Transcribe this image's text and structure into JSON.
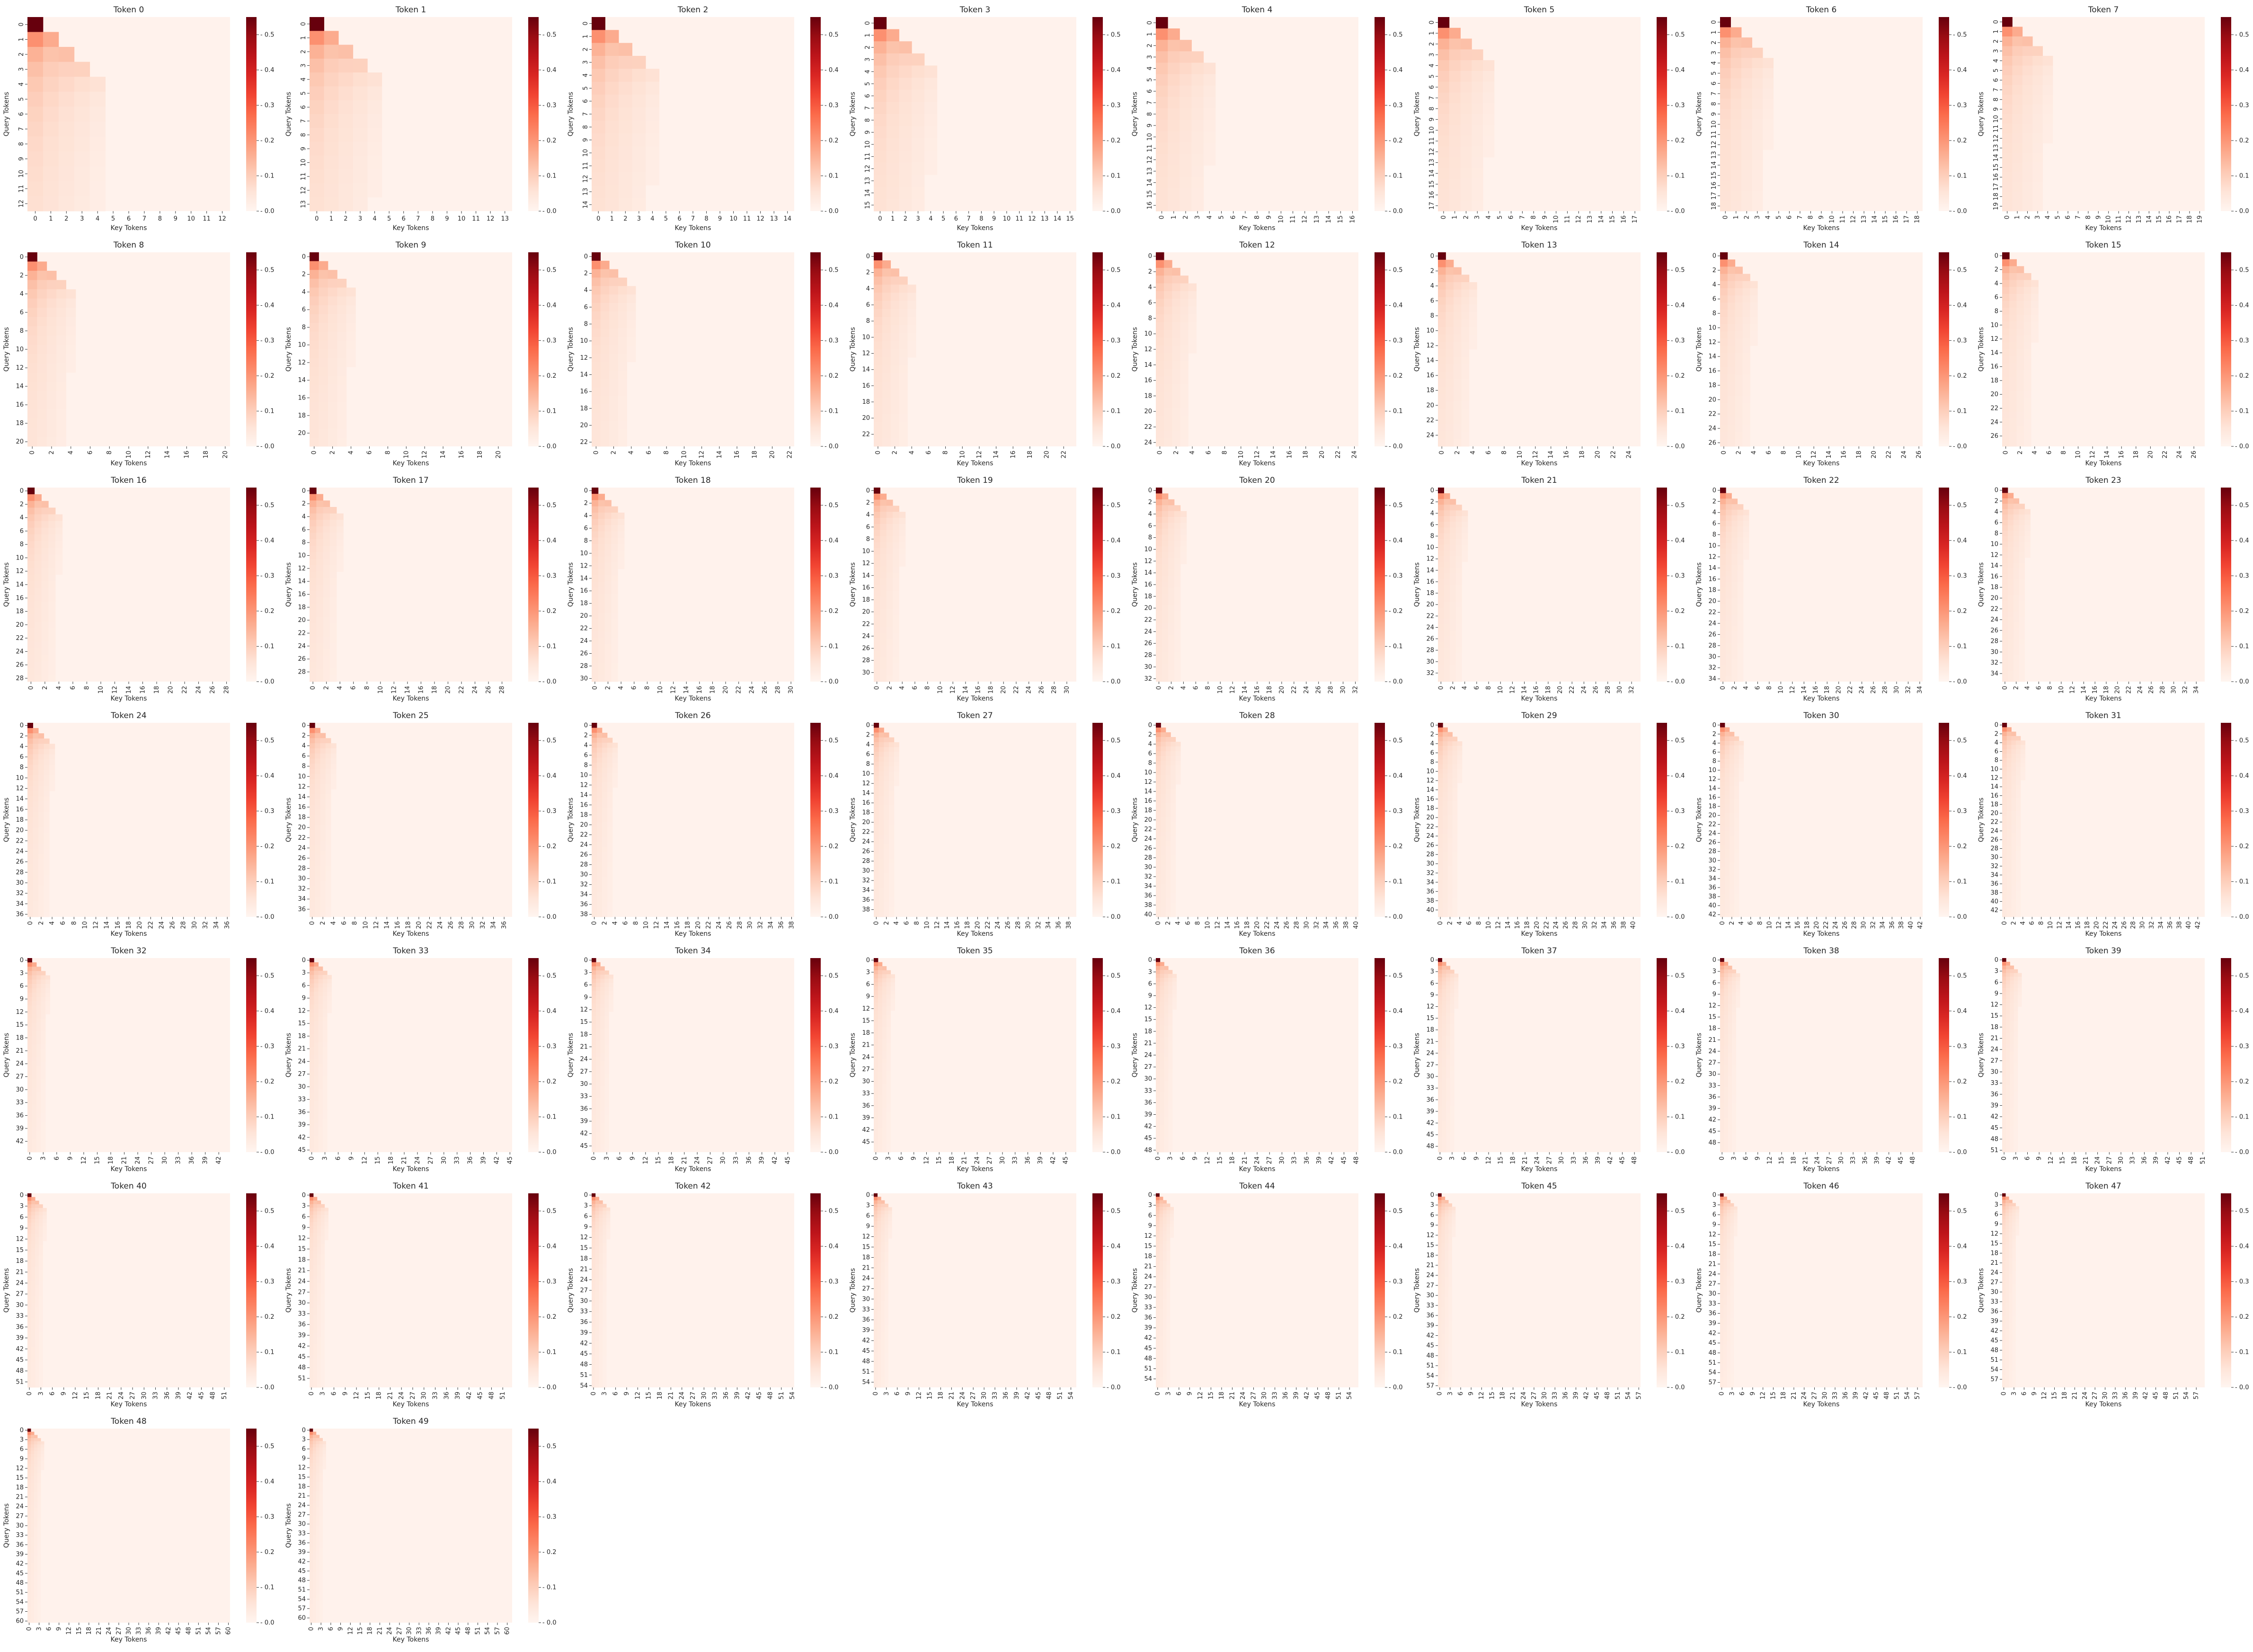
{
  "figure": {
    "colormap": "Reds",
    "color_low": "#fff5f0",
    "color_high": "#67000d"
  },
  "chart_data": {
    "type": "heatmap",
    "xlabel": "Key Tokens",
    "ylabel": "Query Tokens",
    "panels": [
      {
        "title": "Token 0",
        "size": 13,
        "vmax": 0.55,
        "cbar_ticks": [
          0.0,
          0.1,
          0.2,
          0.3,
          0.4,
          0.5
        ]
      },
      {
        "title": "Token 1",
        "size": 14,
        "vmax": 0.55,
        "cbar_ticks": [
          0.0,
          0.1,
          0.2,
          0.3,
          0.4,
          0.5
        ]
      },
      {
        "title": "Token 2",
        "size": 15,
        "vmax": 0.55,
        "cbar_ticks": [
          0.0,
          0.1,
          0.2,
          0.3,
          0.4,
          0.5
        ]
      },
      {
        "title": "Token 3",
        "size": 16,
        "vmax": 0.55,
        "cbar_ticks": [
          0.0,
          0.1,
          0.2,
          0.3,
          0.4,
          0.5
        ]
      },
      {
        "title": "Token 4",
        "size": 17,
        "vmax": 0.55,
        "cbar_ticks": [
          0.0,
          0.1,
          0.2,
          0.3,
          0.4,
          0.5
        ]
      },
      {
        "title": "Token 5",
        "size": 18,
        "vmax": 0.55,
        "cbar_ticks": [
          0.0,
          0.1,
          0.2,
          0.3,
          0.4,
          0.5
        ]
      },
      {
        "title": "Token 6",
        "size": 19,
        "vmax": 0.55,
        "cbar_ticks": [
          0.0,
          0.1,
          0.2,
          0.3,
          0.4,
          0.5
        ]
      },
      {
        "title": "Token 7",
        "size": 20,
        "vmax": 0.55,
        "cbar_ticks": [
          0.0,
          0.1,
          0.2,
          0.3,
          0.4,
          0.5
        ]
      },
      {
        "title": "Token 8",
        "size": 21,
        "vmax": 0.55,
        "cbar_ticks": [
          0.0,
          0.1,
          0.2,
          0.3,
          0.4,
          0.5
        ]
      },
      {
        "title": "Token 9",
        "size": 22,
        "vmax": 0.55,
        "cbar_ticks": [
          0.0,
          0.1,
          0.2,
          0.3,
          0.4,
          0.5
        ]
      },
      {
        "title": "Token 10",
        "size": 23,
        "vmax": 0.55,
        "cbar_ticks": [
          0.0,
          0.1,
          0.2,
          0.3,
          0.4,
          0.5
        ]
      },
      {
        "title": "Token 11",
        "size": 24,
        "vmax": 0.55,
        "cbar_ticks": [
          0.0,
          0.1,
          0.2,
          0.3,
          0.4,
          0.5
        ]
      },
      {
        "title": "Token 12",
        "size": 25,
        "vmax": 0.55,
        "cbar_ticks": [
          0.0,
          0.1,
          0.2,
          0.3,
          0.4,
          0.5
        ]
      },
      {
        "title": "Token 13",
        "size": 26,
        "vmax": 0.55,
        "cbar_ticks": [
          0.0,
          0.1,
          0.2,
          0.3,
          0.4,
          0.5
        ]
      },
      {
        "title": "Token 14",
        "size": 27,
        "vmax": 0.55,
        "cbar_ticks": [
          0.0,
          0.1,
          0.2,
          0.3,
          0.4,
          0.5
        ]
      },
      {
        "title": "Token 15",
        "size": 28,
        "vmax": 0.55,
        "cbar_ticks": [
          0.0,
          0.1,
          0.2,
          0.3,
          0.4,
          0.5
        ]
      },
      {
        "title": "Token 16",
        "size": 29,
        "vmax": 0.55,
        "cbar_ticks": [
          0.0,
          0.1,
          0.2,
          0.3,
          0.4,
          0.5
        ]
      },
      {
        "title": "Token 17",
        "size": 30,
        "vmax": 0.55,
        "cbar_ticks": [
          0.0,
          0.1,
          0.2,
          0.3,
          0.4,
          0.5
        ]
      },
      {
        "title": "Token 18",
        "size": 31,
        "vmax": 0.55,
        "cbar_ticks": [
          0.0,
          0.1,
          0.2,
          0.3,
          0.4,
          0.5
        ]
      },
      {
        "title": "Token 19",
        "size": 32,
        "vmax": 0.55,
        "cbar_ticks": [
          0.0,
          0.1,
          0.2,
          0.3,
          0.4,
          0.5
        ]
      },
      {
        "title": "Token 20",
        "size": 33,
        "vmax": 0.55,
        "cbar_ticks": [
          0.0,
          0.1,
          0.2,
          0.3,
          0.4,
          0.5
        ]
      },
      {
        "title": "Token 21",
        "size": 34,
        "vmax": 0.55,
        "cbar_ticks": [
          0.0,
          0.1,
          0.2,
          0.3,
          0.4,
          0.5
        ]
      },
      {
        "title": "Token 22",
        "size": 35,
        "vmax": 0.55,
        "cbar_ticks": [
          0.0,
          0.1,
          0.2,
          0.3,
          0.4,
          0.5
        ]
      },
      {
        "title": "Token 23",
        "size": 36,
        "vmax": 0.55,
        "cbar_ticks": [
          0.0,
          0.1,
          0.2,
          0.3,
          0.4,
          0.5
        ]
      },
      {
        "title": "Token 24",
        "size": 37,
        "vmax": 0.55,
        "cbar_ticks": [
          0.0,
          0.1,
          0.2,
          0.3,
          0.4,
          0.5
        ]
      },
      {
        "title": "Token 25",
        "size": 38,
        "vmax": 0.55,
        "cbar_ticks": [
          0.0,
          0.1,
          0.2,
          0.3,
          0.4,
          0.5
        ]
      },
      {
        "title": "Token 26",
        "size": 39,
        "vmax": 0.55,
        "cbar_ticks": [
          0.0,
          0.1,
          0.2,
          0.3,
          0.4,
          0.5
        ]
      },
      {
        "title": "Token 27",
        "size": 40,
        "vmax": 0.55,
        "cbar_ticks": [
          0.0,
          0.1,
          0.2,
          0.3,
          0.4,
          0.5
        ]
      },
      {
        "title": "Token 28",
        "size": 41,
        "vmax": 0.55,
        "cbar_ticks": [
          0.0,
          0.1,
          0.2,
          0.3,
          0.4,
          0.5
        ]
      },
      {
        "title": "Token 29",
        "size": 42,
        "vmax": 0.55,
        "cbar_ticks": [
          0.0,
          0.1,
          0.2,
          0.3,
          0.4,
          0.5
        ]
      },
      {
        "title": "Token 30",
        "size": 43,
        "vmax": 0.55,
        "cbar_ticks": [
          0.0,
          0.1,
          0.2,
          0.3,
          0.4,
          0.5
        ]
      },
      {
        "title": "Token 31",
        "size": 44,
        "vmax": 0.55,
        "cbar_ticks": [
          0.0,
          0.1,
          0.2,
          0.3,
          0.4,
          0.5
        ]
      },
      {
        "title": "Token 32",
        "size": 45,
        "vmax": 0.55,
        "cbar_ticks": [
          0.0,
          0.1,
          0.2,
          0.3,
          0.4,
          0.5
        ]
      },
      {
        "title": "Token 33",
        "size": 46,
        "vmax": 0.55,
        "cbar_ticks": [
          0.0,
          0.1,
          0.2,
          0.3,
          0.4,
          0.5
        ]
      },
      {
        "title": "Token 34",
        "size": 47,
        "vmax": 0.55,
        "cbar_ticks": [
          0.0,
          0.1,
          0.2,
          0.3,
          0.4,
          0.5
        ]
      },
      {
        "title": "Token 35",
        "size": 48,
        "vmax": 0.55,
        "cbar_ticks": [
          0.0,
          0.1,
          0.2,
          0.3,
          0.4,
          0.5
        ]
      },
      {
        "title": "Token 36",
        "size": 49,
        "vmax": 0.55,
        "cbar_ticks": [
          0.0,
          0.1,
          0.2,
          0.3,
          0.4,
          0.5
        ]
      },
      {
        "title": "Token 37",
        "size": 50,
        "vmax": 0.55,
        "cbar_ticks": [
          0.0,
          0.1,
          0.2,
          0.3,
          0.4,
          0.5
        ]
      },
      {
        "title": "Token 38",
        "size": 51,
        "vmax": 0.55,
        "cbar_ticks": [
          0.0,
          0.1,
          0.2,
          0.3,
          0.4,
          0.5
        ]
      },
      {
        "title": "Token 39",
        "size": 52,
        "vmax": 0.55,
        "cbar_ticks": [
          0.0,
          0.1,
          0.2,
          0.3,
          0.4,
          0.5
        ]
      },
      {
        "title": "Token 40",
        "size": 53,
        "vmax": 0.55,
        "cbar_ticks": [
          0.0,
          0.1,
          0.2,
          0.3,
          0.4,
          0.5
        ]
      },
      {
        "title": "Token 41",
        "size": 54,
        "vmax": 0.55,
        "cbar_ticks": [
          0.0,
          0.1,
          0.2,
          0.3,
          0.4,
          0.5
        ]
      },
      {
        "title": "Token 42",
        "size": 55,
        "vmax": 0.55,
        "cbar_ticks": [
          0.0,
          0.1,
          0.2,
          0.3,
          0.4,
          0.5
        ]
      },
      {
        "title": "Token 43",
        "size": 56,
        "vmax": 0.55,
        "cbar_ticks": [
          0.0,
          0.1,
          0.2,
          0.3,
          0.4,
          0.5
        ]
      },
      {
        "title": "Token 44",
        "size": 57,
        "vmax": 0.55,
        "cbar_ticks": [
          0.0,
          0.1,
          0.2,
          0.3,
          0.4,
          0.5
        ]
      },
      {
        "title": "Token 45",
        "size": 58,
        "vmax": 0.55,
        "cbar_ticks": [
          0.0,
          0.1,
          0.2,
          0.3,
          0.4,
          0.5
        ]
      },
      {
        "title": "Token 46",
        "size": 59,
        "vmax": 0.55,
        "cbar_ticks": [
          0.0,
          0.1,
          0.2,
          0.3,
          0.4,
          0.5
        ]
      },
      {
        "title": "Token 47",
        "size": 60,
        "vmax": 0.55,
        "cbar_ticks": [
          0.0,
          0.1,
          0.2,
          0.3,
          0.4,
          0.5
        ]
      },
      {
        "title": "Token 48",
        "size": 61,
        "vmax": 0.55,
        "cbar_ticks": [
          0.0,
          0.1,
          0.2,
          0.3,
          0.4,
          0.5
        ]
      },
      {
        "title": "Token 49",
        "size": 62,
        "vmax": 0.55,
        "cbar_ticks": [
          0.0,
          0.1,
          0.2,
          0.3,
          0.4,
          0.5
        ]
      }
    ],
    "attention_pattern": {
      "active_key_columns": [
        0,
        1,
        2,
        3,
        4
      ],
      "column_weights": [
        0.52,
        0.45,
        0.35,
        0.26,
        0.17
      ],
      "rows_for_column_4": 8,
      "background_value": 0.01
    }
  }
}
